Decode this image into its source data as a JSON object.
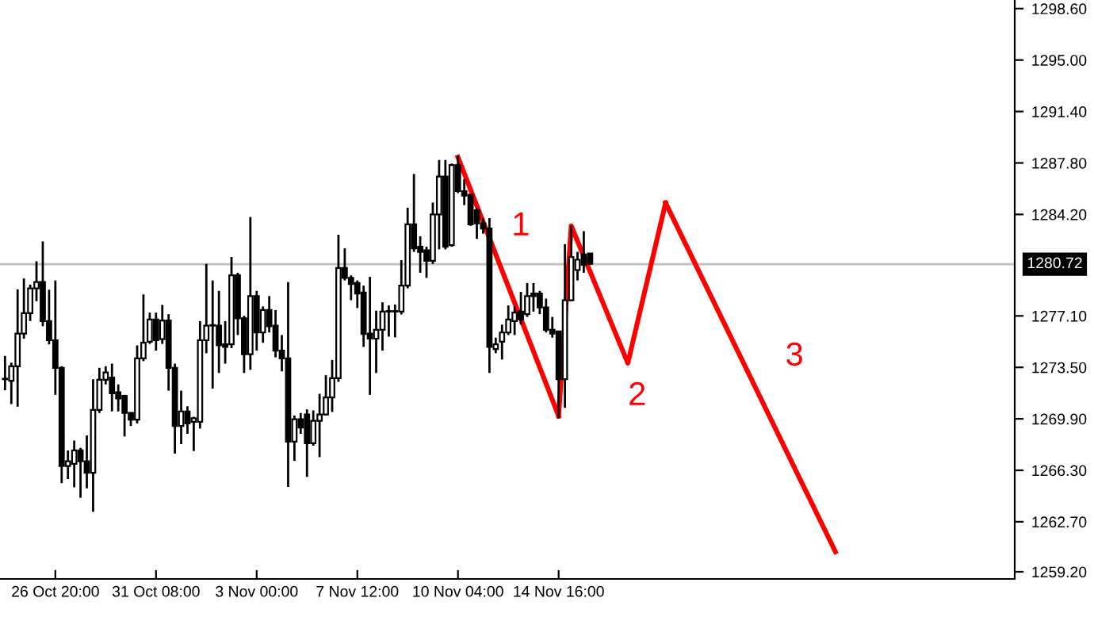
{
  "chart_data": {
    "type": "candlestick",
    "categories": [
      null,
      null,
      null,
      null,
      null,
      null,
      null,
      null,
      "26 Oct 20:00",
      null,
      null,
      null,
      null,
      null,
      null,
      null,
      null,
      null,
      null,
      null,
      null,
      null,
      null,
      null,
      "31 Oct 08:00",
      null,
      null,
      null,
      null,
      null,
      null,
      null,
      null,
      null,
      null,
      null,
      null,
      null,
      null,
      null,
      "3 Nov 00:00",
      null,
      null,
      null,
      null,
      null,
      null,
      null,
      null,
      null,
      null,
      null,
      null,
      null,
      null,
      null,
      "7 Nov 12:00",
      null,
      null,
      null,
      null,
      null,
      null,
      null,
      null,
      null,
      null,
      null,
      null,
      null,
      null,
      null,
      "10 Nov 04:00",
      null,
      null,
      null,
      null,
      null,
      null,
      null,
      null,
      null,
      null,
      null,
      null,
      null,
      null,
      null,
      "14 Nov 16:00",
      null,
      null,
      null,
      null,
      null,
      null,
      null,
      null,
      null,
      null,
      null,
      null,
      null,
      null,
      null,
      null,
      null,
      null,
      null,
      null,
      null,
      null,
      null,
      null,
      null,
      null,
      null,
      null,
      null,
      null,
      null,
      null,
      null,
      null,
      null,
      null,
      null,
      null,
      null,
      null,
      null,
      null,
      null,
      null,
      null,
      null,
      null,
      null,
      null,
      null,
      null,
      null,
      null,
      null,
      null,
      null,
      null,
      null,
      null,
      null,
      null,
      null,
      null,
      null,
      null,
      null,
      null,
      null,
      null,
      null,
      null,
      null
    ],
    "ohlc": [
      [
        1272.67,
        1274.3,
        1271.9,
        1272.67
      ],
      [
        1272.56,
        1273.83,
        1270.93,
        1273.58
      ],
      [
        1273.58,
        1278.96,
        1270.75,
        1275.87
      ],
      [
        1275.87,
        1279.72,
        1275.51,
        1277.29
      ],
      [
        1277.29,
        1279.29,
        1276.74,
        1279.03
      ],
      [
        1279.03,
        1280.92,
        1278.13,
        1279.47
      ],
      [
        1279.47,
        1282.31,
        1276.38,
        1276.74
      ],
      [
        1276.74,
        1278.93,
        1275.11,
        1275.4
      ],
      [
        1275.4,
        1279.58,
        1271.58,
        1273.47
      ],
      [
        1273.47,
        1273.58,
        1265.4,
        1266.6
      ],
      [
        1266.6,
        1267.69,
        1265.69,
        1266.93
      ],
      [
        1266.75,
        1268.38,
        1265.11,
        1267.69
      ],
      [
        1267.69,
        1267.87,
        1264.38,
        1266.93
      ],
      [
        1266.93,
        1268.74,
        1265.04,
        1266.13
      ],
      [
        1266.13,
        1272.67,
        1263.4,
        1270.53
      ],
      [
        1270.53,
        1273.47,
        1270.31,
        1272.63
      ],
      [
        1272.63,
        1273.58,
        1272.31,
        1273.14
      ],
      [
        1272.78,
        1273.76,
        1270.42,
        1271.69
      ],
      [
        1271.76,
        1272.31,
        1270.42,
        1271.33
      ],
      [
        1271.51,
        1271.58,
        1268.67,
        1270.31
      ],
      [
        1270.31,
        1270.31,
        1269.4,
        1269.84
      ],
      [
        1269.84,
        1275.04,
        1269.58,
        1274.13
      ],
      [
        1274.13,
        1278.6,
        1273.94,
        1275.22
      ],
      [
        1275.29,
        1277.33,
        1275.14,
        1276.85
      ],
      [
        1276.85,
        1277.33,
        1274.67,
        1275.4
      ],
      [
        1275.47,
        1277.87,
        1275.14,
        1276.78
      ],
      [
        1276.78,
        1277.22,
        1271.87,
        1273.47
      ],
      [
        1273.47,
        1273.76,
        1267.47,
        1269.4
      ],
      [
        1269.4,
        1271.87,
        1268.13,
        1270.42
      ],
      [
        1270.42,
        1270.78,
        1268.85,
        1269.58
      ],
      [
        1269.69,
        1270.05,
        1267.65,
        1269.94
      ],
      [
        1269.69,
        1276.74,
        1269.22,
        1275.4
      ],
      [
        1275.4,
        1280.74,
        1274.49,
        1276.42
      ],
      [
        1276.42,
        1279.58,
        1272.02,
        1276.42
      ],
      [
        1276.42,
        1278.85,
        1273.11,
        1275.04
      ],
      [
        1275.11,
        1276.74,
        1273.76,
        1274.93
      ],
      [
        1275.11,
        1281.22,
        1274.85,
        1279.94
      ],
      [
        1279.94,
        1280.12,
        1275.76,
        1276.93
      ],
      [
        1276.93,
        1277.11,
        1273.11,
        1274.42
      ],
      [
        1274.42,
        1284.02,
        1273.33,
        1278.49
      ],
      [
        1278.49,
        1278.85,
        1274.67,
        1275.94
      ],
      [
        1275.94,
        1277.76,
        1275.22,
        1277.51
      ],
      [
        1277.51,
        1278.49,
        1275.94,
        1276.38
      ],
      [
        1276.42,
        1277.51,
        1274.2,
        1274.67
      ],
      [
        1274.67,
        1275.76,
        1273.22,
        1274.13
      ],
      [
        1274.13,
        1279.47,
        1265.14,
        1268.31
      ],
      [
        1268.31,
        1270.13,
        1266.96,
        1269.87
      ],
      [
        1269.87,
        1270.31,
        1268.85,
        1269.29
      ],
      [
        1270.2,
        1270.56,
        1265.84,
        1268.2
      ],
      [
        1268.2,
        1270.49,
        1268.02,
        1269.76
      ],
      [
        1269.76,
        1271.65,
        1267.22,
        1270.2
      ],
      [
        1270.2,
        1272.96,
        1270.13,
        1271.4
      ],
      [
        1271.4,
        1274.02,
        1270.38,
        1272.74
      ],
      [
        1272.74,
        1282.78,
        1272.49,
        1280.45
      ],
      [
        1280.45,
        1281.83,
        1279.58,
        1279.76
      ],
      [
        1279.76,
        1279.94,
        1278.2,
        1279.33
      ],
      [
        1279.4,
        1279.58,
        1277.65,
        1278.67
      ],
      [
        1278.74,
        1279.22,
        1274.93,
        1275.83
      ],
      [
        1275.87,
        1279.83,
        1271.58,
        1275.51
      ],
      [
        1275.51,
        1277.47,
        1273.11,
        1276.13
      ],
      [
        1276.13,
        1278.05,
        1274.67,
        1277.4
      ],
      [
        1277.4,
        1277.83,
        1275.65,
        1277.4
      ],
      [
        1277.4,
        1277.9,
        1275.6,
        1277.4
      ],
      [
        1277.4,
        1281.0,
        1277.2,
        1279.22
      ],
      [
        1279.22,
        1284.67,
        1279.03,
        1283.51
      ],
      [
        1283.51,
        1287.03,
        1281.58,
        1281.83
      ],
      [
        1281.94,
        1282.67,
        1280.12,
        1281.58
      ],
      [
        1281.69,
        1281.94,
        1279.76,
        1280.96
      ],
      [
        1280.96,
        1285.03,
        1280.74,
        1284.2
      ],
      [
        1284.2,
        1288.01,
        1281.76,
        1286.85
      ],
      [
        1286.85,
        1288.01,
        1281.76,
        1281.94
      ],
      [
        1282.05,
        1287.76,
        1281.94,
        1287.65
      ],
      [
        1287.65,
        1288.31,
        1285.69,
        1285.83
      ],
      [
        1285.83,
        1286.67,
        1284.85,
        1285.51
      ],
      [
        1285.58,
        1285.58,
        1283.4,
        1283.51
      ],
      [
        1284.49,
        1284.67,
        1282.49,
        1283.58
      ],
      [
        1283.58,
        1283.94,
        1282.85,
        1283.22
      ],
      [
        1283.22,
        1283.94,
        1273.11,
        1274.93
      ],
      [
        1274.78,
        1275.58,
        1274.49,
        1275.11
      ],
      [
        1275.29,
        1276.49,
        1274.05,
        1275.94
      ],
      [
        1275.94,
        1277.83,
        1275.76,
        1276.85
      ],
      [
        1276.74,
        1277.76,
        1275.76,
        1277.33
      ],
      [
        1277.4,
        1278.78,
        1276.49,
        1276.85
      ],
      [
        1277.22,
        1279.4,
        1277.03,
        1278.49
      ],
      [
        1278.67,
        1279.4,
        1277.4,
        1278.49
      ],
      [
        1278.67,
        1278.85,
        1277.22,
        1277.69
      ],
      [
        1277.69,
        1278.31,
        1275.94,
        1276.13
      ],
      [
        1276.13,
        1277.03,
        1275.58,
        1275.87
      ],
      [
        1276.02,
        1276.02,
        1269.94,
        1272.67
      ],
      [
        1272.67,
        1282.12,
        1270.67,
        1278.2
      ],
      [
        1278.2,
        1283.4,
        1278.12,
        1281.22
      ],
      [
        1280.31,
        1281.58,
        1279.58,
        1281.03
      ],
      [
        1281.4,
        1283.03,
        1280.12,
        1280.67
      ],
      [
        1281.47,
        1281.47,
        1280.67,
        1280.74
      ],
      null,
      null,
      null,
      null,
      null,
      null,
      null,
      null,
      null,
      null,
      null,
      null,
      null,
      null,
      null,
      null,
      null,
      null,
      null,
      null,
      null,
      null,
      null,
      null,
      null,
      null,
      null,
      null,
      null,
      null,
      null,
      null,
      null,
      null,
      null,
      null,
      null,
      null,
      null,
      null,
      null,
      null,
      null,
      null,
      null,
      null,
      null,
      null,
      null,
      null,
      null,
      null,
      null,
      null,
      null,
      null,
      null,
      null,
      null,
      null,
      null,
      null,
      null,
      null,
      null,
      null,
      null
    ],
    "series": [
      {
        "type": "line",
        "color": "#ff0000",
        "values": [
          null,
          null,
          null,
          null,
          null,
          null,
          null,
          null,
          null,
          null,
          null,
          null,
          null,
          null,
          null,
          null,
          null,
          null,
          null,
          null,
          null,
          null,
          null,
          null,
          null,
          null,
          null,
          null,
          null,
          null,
          null,
          null,
          null,
          null,
          null,
          null,
          null,
          null,
          null,
          null,
          null,
          null,
          null,
          null,
          null,
          null,
          null,
          null,
          null,
          null,
          null,
          null,
          null,
          null,
          null,
          null,
          null,
          null,
          null,
          null,
          null,
          null,
          null,
          null,
          null,
          null,
          null,
          null,
          null,
          null,
          null,
          null,
          1288.2,
          null,
          null,
          null,
          null,
          null,
          null,
          null,
          null,
          null,
          null,
          null,
          null,
          null,
          null,
          null,
          1270.1,
          null,
          null,
          null,
          null,
          null,
          null,
          null,
          null,
          null,
          null,
          null,
          null,
          null,
          null,
          null,
          null,
          null,
          null,
          null,
          null,
          null,
          null,
          null,
          null,
          null,
          null,
          null,
          null,
          null,
          null,
          null,
          null,
          null,
          null,
          null,
          null,
          null,
          null,
          null,
          null,
          null,
          null,
          null,
          null,
          null,
          null,
          null,
          null,
          null,
          null,
          null,
          null,
          null,
          null,
          null,
          null,
          null,
          null,
          null,
          null,
          null,
          null,
          null,
          null,
          null,
          null,
          null,
          null,
          null,
          null,
          null,
          null
        ]
      },
      {
        "type": "line",
        "color": "#ff0000",
        "values": [
          null,
          null,
          null,
          null,
          null,
          null,
          null,
          null,
          null,
          null,
          null,
          null,
          null,
          null,
          null,
          null,
          null,
          null,
          null,
          null,
          null,
          null,
          null,
          null,
          null,
          null,
          null,
          null,
          null,
          null,
          null,
          null,
          null,
          null,
          null,
          null,
          null,
          null,
          null,
          null,
          null,
          null,
          null,
          null,
          null,
          null,
          null,
          null,
          null,
          null,
          null,
          null,
          null,
          null,
          null,
          null,
          null,
          null,
          null,
          null,
          null,
          null,
          null,
          null,
          null,
          null,
          null,
          null,
          null,
          null,
          null,
          null,
          null,
          null,
          null,
          null,
          null,
          null,
          null,
          null,
          null,
          null,
          null,
          null,
          null,
          null,
          null,
          null,
          1270.1,
          null,
          1283.4,
          null,
          null,
          null,
          null,
          null,
          null,
          null,
          null,
          1273.8,
          null,
          null,
          null,
          null,
          null,
          1285.0,
          null,
          null,
          null,
          null,
          null,
          null,
          null,
          null,
          null,
          null,
          null,
          null,
          null,
          null,
          null,
          null,
          null,
          null,
          null,
          null,
          null,
          null,
          null,
          null,
          null,
          null,
          null,
          null,
          null,
          null,
          null,
          null,
          null,
          null,
          null,
          null,
          null,
          null,
          null,
          null,
          null,
          null,
          null,
          null,
          null,
          null,
          null,
          null,
          null,
          null,
          null,
          null,
          null,
          null,
          null
        ]
      },
      {
        "type": "line",
        "color": "#ff0000",
        "values": [
          null,
          null,
          null,
          null,
          null,
          null,
          null,
          null,
          null,
          null,
          null,
          null,
          null,
          null,
          null,
          null,
          null,
          null,
          null,
          null,
          null,
          null,
          null,
          null,
          null,
          null,
          null,
          null,
          null,
          null,
          null,
          null,
          null,
          null,
          null,
          null,
          null,
          null,
          null,
          null,
          null,
          null,
          null,
          null,
          null,
          null,
          null,
          null,
          null,
          null,
          null,
          null,
          null,
          null,
          null,
          null,
          null,
          null,
          null,
          null,
          null,
          null,
          null,
          null,
          null,
          null,
          null,
          null,
          null,
          null,
          null,
          null,
          null,
          null,
          null,
          null,
          null,
          null,
          null,
          null,
          null,
          null,
          null,
          null,
          null,
          null,
          null,
          null,
          null,
          null,
          null,
          null,
          null,
          null,
          null,
          null,
          null,
          null,
          null,
          null,
          null,
          null,
          null,
          null,
          null,
          1285.0,
          null,
          null,
          null,
          null,
          null,
          null,
          null,
          null,
          null,
          null,
          null,
          null,
          null,
          null,
          null,
          null,
          null,
          null,
          null,
          null,
          null,
          null,
          null,
          null,
          null,
          null,
          1260.6,
          null,
          null,
          null,
          null,
          null,
          null,
          null,
          null,
          null,
          null,
          null,
          null,
          null,
          null,
          null,
          null,
          null,
          null,
          null,
          null,
          null,
          null,
          null,
          null,
          null,
          null,
          null,
          null
        ]
      }
    ],
    "ylim": [
      1258.7,
      1299.2
    ],
    "yticks": [
      {
        "value": 1259.2,
        "label": "1259.20"
      },
      {
        "value": 1262.7,
        "label": "1262.70"
      },
      {
        "value": 1266.3,
        "label": "1266.30"
      },
      {
        "value": 1269.9,
        "label": "1269.90"
      },
      {
        "value": 1273.5,
        "label": "1273.50"
      },
      {
        "value": 1277.1,
        "label": "1277.10"
      },
      {
        "value": 1284.2,
        "label": "1284.20"
      },
      {
        "value": 1287.8,
        "label": "1287.80"
      },
      {
        "value": 1291.4,
        "label": "1291.40"
      },
      {
        "value": 1295.0,
        "label": "1295.00"
      },
      {
        "value": 1298.6,
        "label": "1298.60"
      }
    ],
    "ref_lines": [
      {
        "axis": "y",
        "value": 1280.72,
        "label": "1280.72",
        "color": "#c0c0c0"
      }
    ],
    "annotations": [
      "1",
      "2",
      "3"
    ],
    "grid": false,
    "legend": false,
    "marker": "none",
    "line_style": "solid"
  }
}
